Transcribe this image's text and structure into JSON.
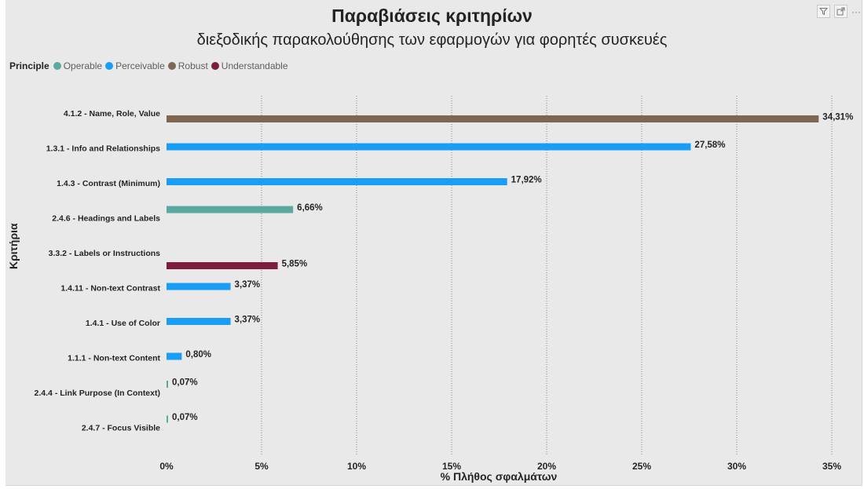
{
  "header": {
    "title": "Παραβιάσεις κριτηρίων",
    "subtitle": "διεξοδικής παρακολούθησης των εφαρμογών για φορητές συσκευές"
  },
  "legend": {
    "title": "Principle",
    "items": [
      {
        "label": "Operable",
        "color": "#5ba89e"
      },
      {
        "label": "Perceivable",
        "color": "#1a9df5"
      },
      {
        "label": "Robust",
        "color": "#7e6652"
      },
      {
        "label": "Understandable",
        "color": "#7c1d3c"
      }
    ]
  },
  "toolbar": {
    "filter_icon": "filter-icon",
    "focus_icon": "focus-mode-icon",
    "more_icon": "more-options-icon",
    "more_label": "···"
  },
  "chart_data": {
    "type": "bar",
    "orientation": "horizontal",
    "title": "Παραβιάσεις κριτηρίων",
    "subtitle": "διεξοδικής παρακολούθησης των εφαρμογών για φορητές συσκευές",
    "xlabel": "% Πλήθος σφαλμάτων",
    "ylabel": "Κριτήρια",
    "xlim": [
      0,
      35
    ],
    "x_ticks": [
      "0%",
      "5%",
      "10%",
      "15%",
      "20%",
      "25%",
      "30%",
      "35%"
    ],
    "legend_position": "top-left",
    "grid": "vertical dotted",
    "categories": [
      "4.1.2 - Name, Role, Value",
      "1.3.1 - Info and Relationships",
      "1.4.3 - Contrast (Minimum)",
      "2.4.6 - Headings and Labels",
      "3.3.2 - Labels or Instructions",
      "1.4.11 - Non-text Contrast",
      "1.4.1 - Use of Color",
      "1.1.1 - Non-text Content",
      "2.4.4 - Link Purpose (In Context)",
      "2.4.7 - Focus Visible"
    ],
    "series": [
      {
        "name": "Operable",
        "color": "#5ba89e",
        "values": [
          null,
          null,
          null,
          6.66,
          null,
          null,
          null,
          null,
          0.07,
          0.07
        ],
        "labels": [
          null,
          null,
          null,
          "6,66%",
          null,
          null,
          null,
          null,
          "0,07%",
          "0,07%"
        ]
      },
      {
        "name": "Perceivable",
        "color": "#1a9df5",
        "values": [
          null,
          27.58,
          17.92,
          null,
          null,
          3.37,
          3.37,
          0.8,
          null,
          null
        ],
        "labels": [
          null,
          "27,58%",
          "17,92%",
          null,
          null,
          "3,37%",
          "3,37%",
          "0,80%",
          null,
          null
        ]
      },
      {
        "name": "Robust",
        "color": "#7e6652",
        "values": [
          34.31,
          null,
          null,
          null,
          null,
          null,
          null,
          null,
          null,
          null
        ],
        "labels": [
          "34,31%",
          null,
          null,
          null,
          null,
          null,
          null,
          null,
          null,
          null
        ]
      },
      {
        "name": "Understandable",
        "color": "#7c1d3c",
        "values": [
          null,
          null,
          null,
          null,
          5.85,
          null,
          null,
          null,
          null,
          null
        ],
        "labels": [
          null,
          null,
          null,
          null,
          "5,85%",
          null,
          null,
          null,
          null,
          null
        ]
      }
    ]
  }
}
